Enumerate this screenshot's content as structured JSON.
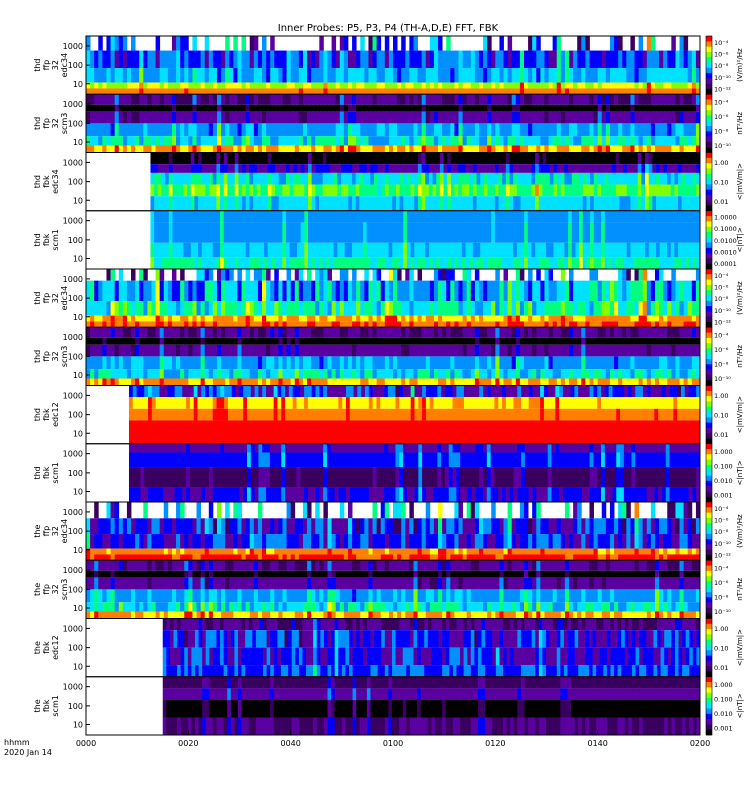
{
  "chart_data": {
    "type": "heatmap",
    "title": "Inner Probes: P5, P3, P4 (TH-A,D,E) FFT, FBK",
    "x_axis": {
      "range": [
        "0000",
        "0200"
      ],
      "tick_labels": [
        "0000",
        "0020",
        "0040",
        "0100",
        "0120",
        "0140",
        "0200"
      ],
      "label_line1": "hhmm",
      "label_line2": "2020 Jan 14"
    },
    "y_axis": {
      "scale": "log",
      "tick_labels": [
        "10",
        "100",
        "1000"
      ]
    },
    "colormap": [
      "#000000",
      "#3a0060",
      "#5a00a0",
      "#0000ff",
      "#0090ff",
      "#00e0ff",
      "#00ff80",
      "#80ff00",
      "#ffff00",
      "#ff8000",
      "#ff0000"
    ],
    "panels": [
      {
        "probe": "thd",
        "mode": "ffp",
        "chan": "32",
        "sensor": "edc34",
        "data_start_frac": 0.0,
        "kind": "ffp_e",
        "cbar_unit": "(V/m)²/Hz",
        "cbar_ticks": [
          "10⁻⁴",
          "10⁻⁶",
          "10⁻⁸",
          "10⁻¹⁰",
          "10⁻¹²"
        ]
      },
      {
        "probe": "thd",
        "mode": "ffp",
        "chan": "32",
        "sensor": "scm3",
        "data_start_frac": 0.0,
        "kind": "ffp_b",
        "cbar_unit": "nT²/Hz",
        "cbar_ticks": [
          "10⁻⁴",
          "10⁻⁶",
          "10⁻⁸",
          "10⁻¹⁰"
        ]
      },
      {
        "probe": "thd",
        "mode": "fbk",
        "chan": "",
        "sensor": "edc34",
        "data_start_frac": 0.105,
        "kind": "fbk_e",
        "cbar_unit": "<|mV/m|>",
        "cbar_ticks": [
          "1.00",
          "0.10",
          "0.01"
        ]
      },
      {
        "probe": "thd",
        "mode": "fbk",
        "chan": "",
        "sensor": "scm1",
        "data_start_frac": 0.105,
        "kind": "fbk_b",
        "cbar_unit": "<|nT|>",
        "cbar_ticks": [
          "1.0000",
          "0.1000",
          "0.0100",
          "0.0010",
          "0.0001"
        ]
      },
      {
        "probe": "thd",
        "mode": "ffp",
        "chan": "32",
        "sensor": "edc34",
        "data_start_frac": 0.0,
        "kind": "ffp_e2",
        "cbar_unit": "(V/m)²/Hz",
        "cbar_ticks": [
          "10⁻⁴",
          "10⁻⁶",
          "10⁻⁸",
          "10⁻¹⁰",
          "10⁻¹²"
        ]
      },
      {
        "probe": "thd",
        "mode": "ffp",
        "chan": "32",
        "sensor": "scm3",
        "data_start_frac": 0.0,
        "kind": "ffp_b",
        "cbar_unit": "nT²/Hz",
        "cbar_ticks": [
          "10⁻⁴",
          "10⁻⁶",
          "10⁻⁸",
          "10⁻¹⁰"
        ]
      },
      {
        "probe": "thd",
        "mode": "fbk",
        "chan": "",
        "sensor": "edc12",
        "data_start_frac": 0.07,
        "kind": "fbk_e_hot",
        "cbar_unit": "<|mV/m|>",
        "cbar_ticks": [
          "1.00",
          "0.10",
          "0.01"
        ]
      },
      {
        "probe": "thd",
        "mode": "fbk",
        "chan": "",
        "sensor": "scm1",
        "data_start_frac": 0.07,
        "kind": "fbk_b_dark",
        "cbar_unit": "<|nT|>",
        "cbar_ticks": [
          "1.000",
          "0.100",
          "0.010",
          "0.001"
        ]
      },
      {
        "probe": "the",
        "mode": "ffp",
        "chan": "32",
        "sensor": "edc34",
        "data_start_frac": 0.0,
        "kind": "ffp_e3",
        "cbar_unit": "(V/m)²/Hz",
        "cbar_ticks": [
          "10⁻⁴",
          "10⁻⁶",
          "10⁻⁸",
          "10⁻¹⁰",
          "10⁻¹²"
        ]
      },
      {
        "probe": "the",
        "mode": "ffp",
        "chan": "32",
        "sensor": "scm3",
        "data_start_frac": 0.0,
        "kind": "ffp_b",
        "cbar_unit": "nT²/Hz",
        "cbar_ticks": [
          "10⁻⁴",
          "10⁻⁶",
          "10⁻⁸",
          "10⁻¹⁰"
        ]
      },
      {
        "probe": "the",
        "mode": "fbk",
        "chan": "",
        "sensor": "edc12",
        "data_start_frac": 0.125,
        "kind": "fbk_e_dark",
        "cbar_unit": "<|mV/m|>",
        "cbar_ticks": [
          "1.00",
          "0.10",
          "0.01"
        ]
      },
      {
        "probe": "the",
        "mode": "fbk",
        "chan": "",
        "sensor": "scm1",
        "data_start_frac": 0.125,
        "kind": "fbk_b_darker",
        "cbar_unit": "<|nT|>",
        "cbar_ticks": [
          "1.000",
          "0.100",
          "0.010",
          "0.001"
        ]
      }
    ]
  }
}
